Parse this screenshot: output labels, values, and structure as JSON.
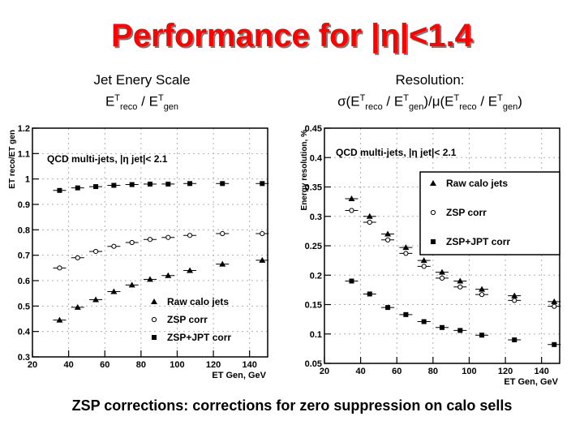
{
  "slide": {
    "title": "Performance for |η|<1.4",
    "left_caption": {
      "line1": "Jet Enery Scale",
      "a": "E",
      "b": "T",
      "c": "reco",
      "d": " / E",
      "e": "T",
      "f": "gen"
    },
    "right_caption": {
      "line1": "Resolution:",
      "a": "σ(E",
      "b": "T",
      "c": "reco",
      "d": " / E",
      "e": "T",
      "f": "gen",
      "g": ")/μ(E",
      "h": "T",
      "i": "reco",
      "j": " / E",
      "k": "T",
      "l": "gen",
      "m": ")"
    },
    "footer": "ZSP corrections: corrections for zero suppression on calo sells"
  },
  "chart_data": [
    {
      "type": "scatter",
      "title": "",
      "annotation": "QCD multi-jets, |η jet|< 2.1",
      "xlabel": "ET Gen, GeV",
      "ylabel": "ET reco/ET gen",
      "xlim": [
        20,
        150
      ],
      "ylim": [
        0.3,
        1.2
      ],
      "xticks": [
        "20",
        "40",
        "60",
        "80",
        "100",
        "120",
        "140"
      ],
      "yticks": [
        "0.3",
        "0.4",
        "0.5",
        "0.6",
        "0.7",
        "0.8",
        "0.9",
        "1",
        "1.1",
        "1.2"
      ],
      "legend_position": "bottom-right",
      "series": [
        {
          "name": "Raw calo jets",
          "marker": "triangle",
          "points": [
            [
              35,
              0.445
            ],
            [
              45,
              0.495
            ],
            [
              55,
              0.525
            ],
            [
              65,
              0.557
            ],
            [
              75,
              0.583
            ],
            [
              85,
              0.605
            ],
            [
              95,
              0.62
            ],
            [
              107,
              0.64
            ],
            [
              125,
              0.665
            ],
            [
              147,
              0.68
            ]
          ]
        },
        {
          "name": "ZSP corr",
          "marker": "open-circle",
          "points": [
            [
              35,
              0.65
            ],
            [
              45,
              0.69
            ],
            [
              55,
              0.715
            ],
            [
              65,
              0.735
            ],
            [
              75,
              0.75
            ],
            [
              85,
              0.762
            ],
            [
              95,
              0.77
            ],
            [
              107,
              0.778
            ],
            [
              125,
              0.785
            ],
            [
              147,
              0.785
            ]
          ]
        },
        {
          "name": "ZSP+JPT corr",
          "marker": "square",
          "points": [
            [
              35,
              0.955
            ],
            [
              45,
              0.965
            ],
            [
              55,
              0.97
            ],
            [
              65,
              0.975
            ],
            [
              75,
              0.978
            ],
            [
              85,
              0.98
            ],
            [
              95,
              0.98
            ],
            [
              107,
              0.982
            ],
            [
              125,
              0.982
            ],
            [
              147,
              0.982
            ]
          ]
        }
      ]
    },
    {
      "type": "scatter",
      "title": "",
      "annotation": "QCD multi-jets, |η jet|< 2.1",
      "xlabel": "ET Gen, GeV",
      "ylabel": "Energy resolution, %",
      "xlim": [
        20,
        150
      ],
      "ylim": [
        0.05,
        0.45
      ],
      "xticks": [
        "20",
        "40",
        "60",
        "80",
        "100",
        "120",
        "140"
      ],
      "yticks": [
        "0.05",
        "0.1",
        "0.15",
        "0.2",
        "0.25",
        "0.3",
        "0.35",
        "0.4",
        "0.45"
      ],
      "legend_position": "right",
      "series": [
        {
          "name": "Raw calo jets",
          "marker": "triangle",
          "points": [
            [
              35,
              0.33
            ],
            [
              45,
              0.3
            ],
            [
              55,
              0.27
            ],
            [
              65,
              0.247
            ],
            [
              75,
              0.225
            ],
            [
              85,
              0.205
            ],
            [
              95,
              0.19
            ],
            [
              107,
              0.176
            ],
            [
              125,
              0.165
            ],
            [
              147,
              0.155
            ]
          ]
        },
        {
          "name": "ZSP corr",
          "marker": "open-circle",
          "points": [
            [
              35,
              0.31
            ],
            [
              45,
              0.29
            ],
            [
              55,
              0.26
            ],
            [
              65,
              0.237
            ],
            [
              75,
              0.215
            ],
            [
              85,
              0.195
            ],
            [
              95,
              0.18
            ],
            [
              107,
              0.167
            ],
            [
              125,
              0.157
            ],
            [
              147,
              0.147
            ]
          ]
        },
        {
          "name": "ZSP+JPT corr",
          "marker": "square",
          "points": [
            [
              35,
              0.19
            ],
            [
              45,
              0.168
            ],
            [
              55,
              0.145
            ],
            [
              65,
              0.133
            ],
            [
              75,
              0.121
            ],
            [
              85,
              0.111
            ],
            [
              95,
              0.106
            ],
            [
              107,
              0.098
            ],
            [
              125,
              0.09
            ],
            [
              147,
              0.082
            ]
          ]
        }
      ]
    }
  ]
}
